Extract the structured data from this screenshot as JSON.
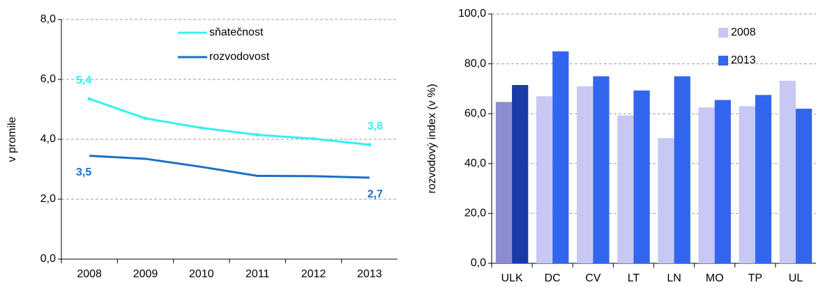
{
  "chart_data": [
    {
      "type": "line",
      "ylabel": "v promile",
      "categories": [
        "2008",
        "2009",
        "2010",
        "2011",
        "2012",
        "2013"
      ],
      "series": [
        {
          "name": "sňatečnost",
          "color": "#33f0f0",
          "values": [
            5.35,
            4.7,
            4.38,
            4.15,
            4.02,
            3.82
          ],
          "value_labels": [
            "5,4",
            null,
            null,
            null,
            null,
            "3,8"
          ]
        },
        {
          "name": "rozvodovost",
          "color": "#1a6fc4",
          "values": [
            3.45,
            3.35,
            3.08,
            2.78,
            2.77,
            2.72
          ],
          "value_labels": [
            "3,5",
            null,
            null,
            null,
            null,
            "2,7"
          ]
        }
      ],
      "ylim": [
        0,
        8
      ],
      "yticks": [
        {
          "value": 0,
          "label": "0,0"
        },
        {
          "value": 2,
          "label": "2,0"
        },
        {
          "value": 4,
          "label": "4,0"
        },
        {
          "value": 6,
          "label": "6,0"
        },
        {
          "value": 8,
          "label": "8,0"
        }
      ],
      "grid": true
    },
    {
      "type": "bar",
      "ylabel": "rozvodový index (v %)",
      "categories": [
        "ULK",
        "DC",
        "CV",
        "LT",
        "LN",
        "MO",
        "TP",
        "UL"
      ],
      "series": [
        {
          "name": "2008",
          "color": "#c8c8f4",
          "highlight_color": "#8c8cd0",
          "values": [
            64.7,
            67,
            71,
            59.3,
            50.2,
            62.5,
            63,
            73.2
          ]
        },
        {
          "name": "2013",
          "color": "#3366ee",
          "highlight_color": "#1a3aa8",
          "values": [
            71.5,
            85,
            75,
            69.3,
            75,
            65.5,
            67.5,
            62
          ]
        }
      ],
      "ylim": [
        0,
        100
      ],
      "yticks": [
        {
          "value": 0,
          "label": "0,0"
        },
        {
          "value": 20,
          "label": "20,0"
        },
        {
          "value": 40,
          "label": "40,0"
        },
        {
          "value": 60,
          "label": "60,0"
        },
        {
          "value": 80,
          "label": "80,0"
        },
        {
          "value": 100,
          "label": "100,0"
        }
      ],
      "grid": true
    }
  ]
}
